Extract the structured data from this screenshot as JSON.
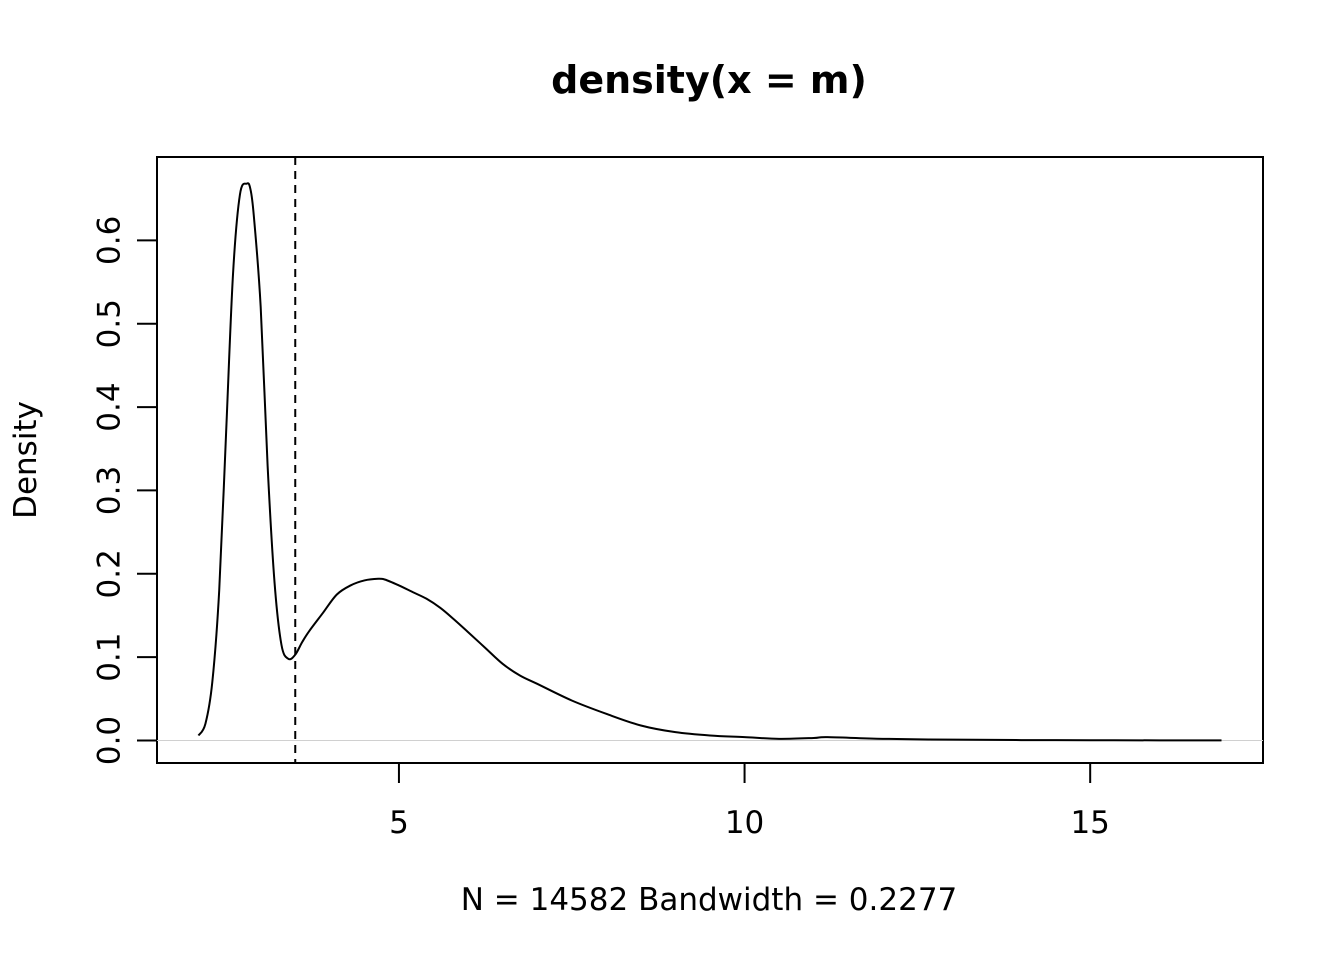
{
  "chart_data": {
    "type": "line",
    "title": "density(x = m)",
    "xlabel": "N = 14582   Bandwidth = 0.2277",
    "ylabel": "Density",
    "xlim": [
      1.5,
      17.5
    ],
    "ylim": [
      -0.027,
      0.7
    ],
    "x_ticks": [
      "5",
      "10",
      "15"
    ],
    "y_ticks": [
      "0.0",
      "0.1",
      "0.2",
      "0.3",
      "0.4",
      "0.5",
      "0.6"
    ],
    "vline_x": 3.5,
    "series": [
      {
        "x": [
          2.1,
          2.2,
          2.3,
          2.4,
          2.5,
          2.6,
          2.7,
          2.8,
          2.85,
          2.9,
          3.0,
          3.1,
          3.2,
          3.3,
          3.4,
          3.5,
          3.6,
          3.7,
          3.9,
          4.1,
          4.3,
          4.5,
          4.7,
          4.8,
          5.0,
          5.2,
          5.4,
          5.6,
          5.8,
          6.0,
          6.25,
          6.5,
          6.75,
          7.0,
          7.5,
          8.0,
          8.5,
          9.0,
          9.5,
          10.0,
          10.5,
          11.0,
          11.2,
          12.0,
          13.0,
          14.0,
          15.0,
          16.0,
          16.9
        ],
        "y": [
          0.006,
          0.02,
          0.07,
          0.18,
          0.37,
          0.56,
          0.655,
          0.668,
          0.662,
          0.63,
          0.52,
          0.33,
          0.19,
          0.115,
          0.098,
          0.103,
          0.118,
          0.131,
          0.153,
          0.175,
          0.186,
          0.192,
          0.194,
          0.193,
          0.186,
          0.178,
          0.17,
          0.159,
          0.145,
          0.13,
          0.111,
          0.092,
          0.078,
          0.068,
          0.048,
          0.032,
          0.018,
          0.01,
          0.006,
          0.004,
          0.002,
          0.003,
          0.004,
          0.002,
          0.001,
          0.0005,
          0.0003,
          0.0002,
          0.0001
        ]
      }
    ]
  }
}
